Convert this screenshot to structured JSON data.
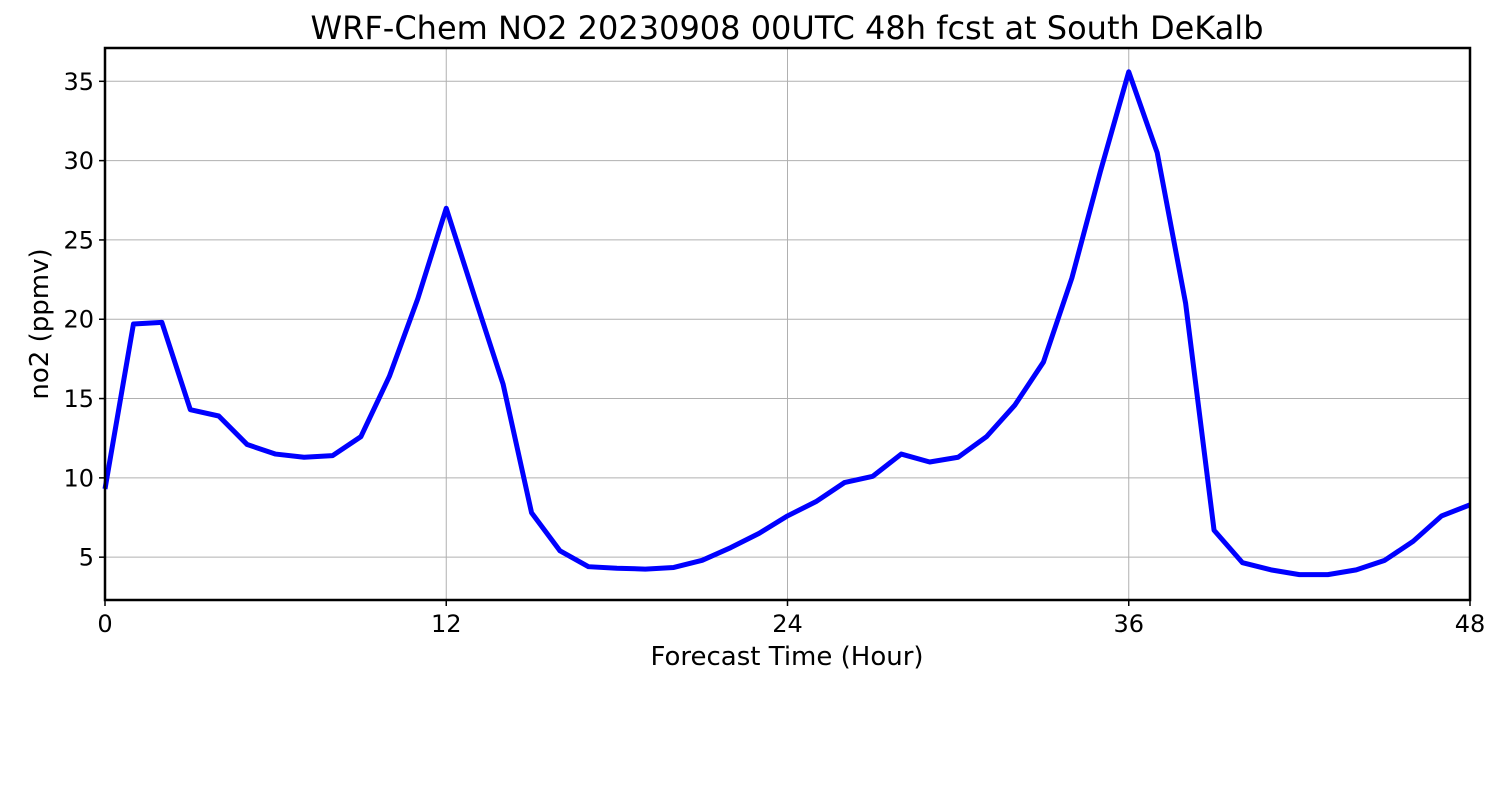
{
  "chart_data": {
    "type": "line",
    "title": "WRF-Chem NO2  20230908 00UTC 48h fcst at South DeKalb",
    "xlabel": "Forecast Time (Hour)",
    "ylabel": "no2  (ppmv)",
    "xlim": [
      0,
      48
    ],
    "ylim": [
      2.3,
      37.1
    ],
    "xticks": [
      0,
      12,
      24,
      36,
      48
    ],
    "yticks": [
      5,
      10,
      15,
      20,
      25,
      30,
      35
    ],
    "grid": true,
    "color": "#0000ff",
    "series": [
      {
        "x": [
          0,
          1,
          2,
          3,
          4,
          5,
          6,
          7,
          8,
          9,
          10,
          11,
          12,
          13,
          14,
          15,
          16,
          17,
          18,
          19,
          20,
          21,
          22,
          23,
          24,
          25,
          26,
          27,
          28,
          29,
          30,
          31,
          32,
          33,
          34,
          35,
          36,
          37,
          38,
          39,
          40,
          41,
          42,
          43,
          44,
          45,
          46,
          47,
          48
        ],
        "values": [
          9.3,
          19.7,
          19.8,
          14.3,
          13.9,
          12.1,
          11.5,
          11.3,
          11.4,
          12.6,
          16.4,
          21.3,
          27.0,
          21.4,
          15.9,
          7.8,
          5.4,
          4.4,
          4.3,
          4.25,
          4.35,
          4.8,
          5.6,
          6.5,
          7.6,
          8.5,
          9.7,
          10.1,
          11.5,
          11.0,
          11.3,
          12.6,
          14.6,
          17.3,
          22.6,
          29.3,
          35.6,
          30.5,
          21.0,
          6.7,
          4.65,
          4.2,
          3.9,
          3.9,
          4.2,
          4.8,
          6.0,
          7.6,
          8.3
        ]
      }
    ]
  }
}
